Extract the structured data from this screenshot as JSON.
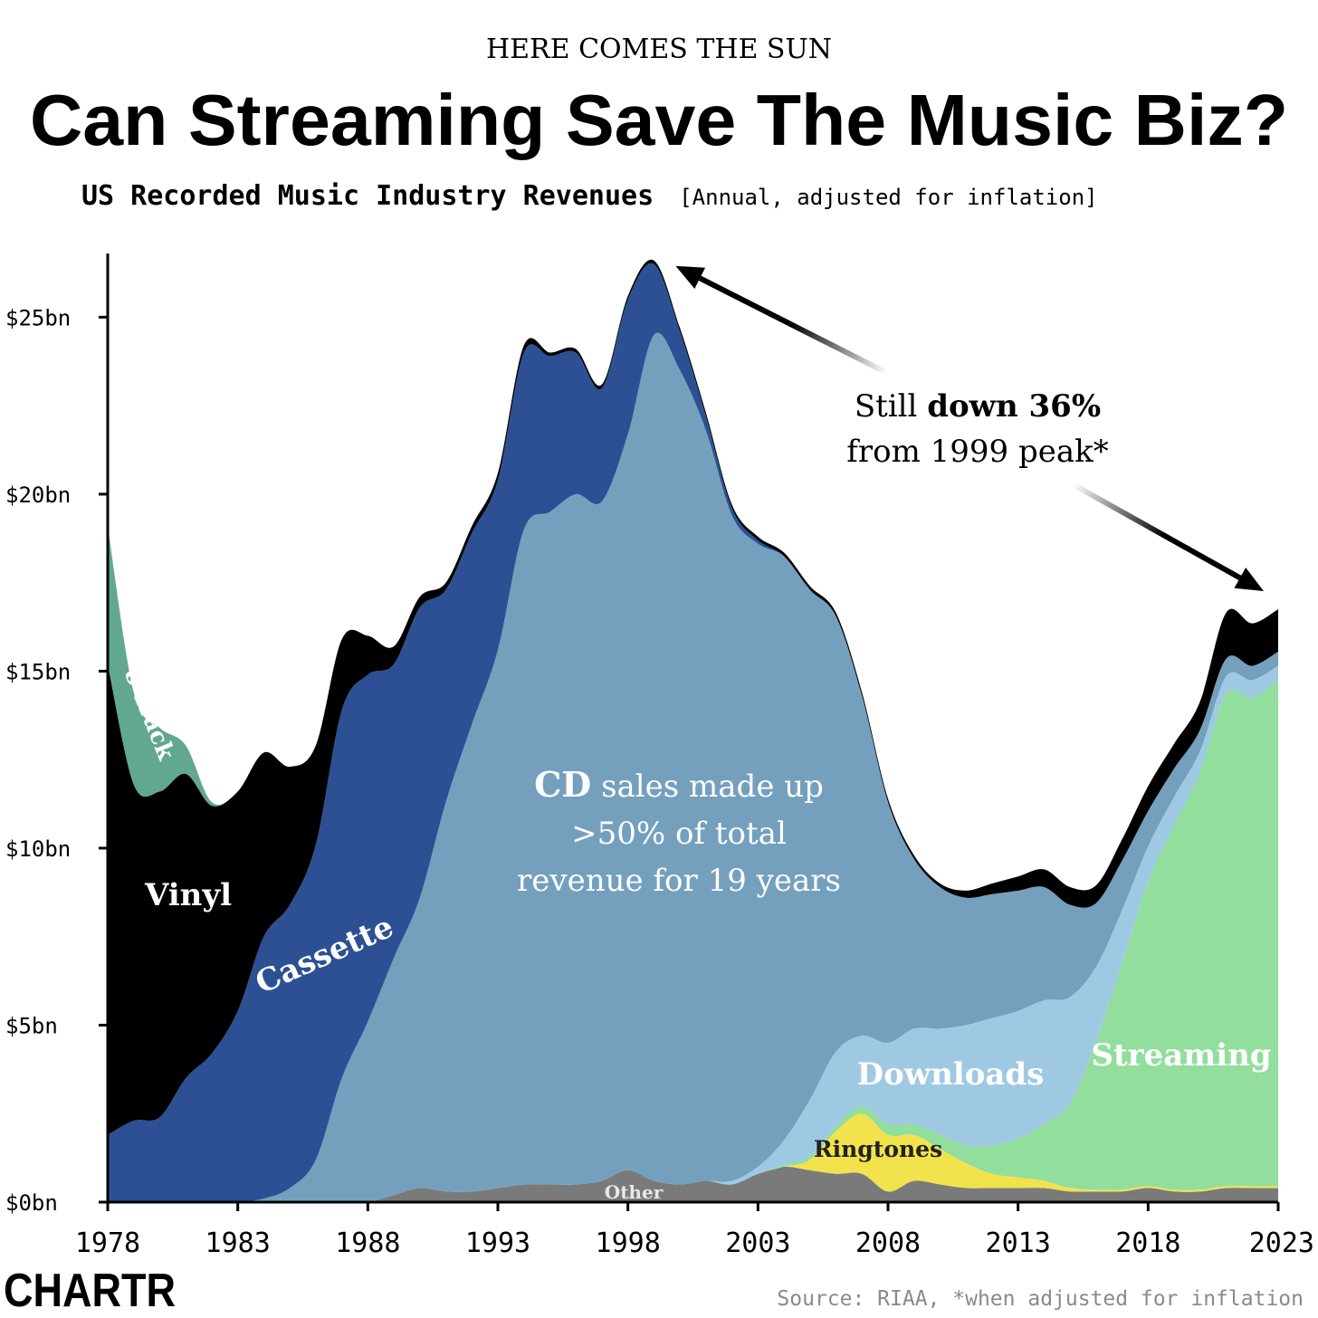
{
  "header": {
    "kicker": "HERE COMES THE SUN",
    "title": "Can Streaming Save The Music Biz?",
    "subtitle": "US Recorded Music Industry Revenues",
    "subtitle_note": "[Annual, adjusted for inflation]"
  },
  "annotation": {
    "line1_prefix": "Still ",
    "line1_bold": "down 36%",
    "line2": "from 1999 peak*",
    "from_year": 1999,
    "to_year": 2023
  },
  "cd_note": {
    "bold": "CD",
    "line1_rest": " sales made up",
    "line2": ">50% of total",
    "line3": "revenue for 19 years"
  },
  "footer": {
    "logo": "CHARTR",
    "source": "Source: RIAA, *when adjusted for inflation"
  },
  "colors": {
    "Other": "#7a7a7a",
    "Ringtones": "#f2e34c",
    "Streaming": "#92de9c",
    "Downloads": "#9fc9e3",
    "CD": "#74a0bd",
    "Cassette": "#2c5093",
    "Vinyl": "#000000",
    "8-Track": "#62a890",
    "axis": "#000000",
    "text": "#000000"
  },
  "chart_data": {
    "type": "area",
    "stacked": true,
    "x": [
      1978,
      1979,
      1980,
      1981,
      1982,
      1983,
      1984,
      1985,
      1986,
      1987,
      1988,
      1989,
      1990,
      1991,
      1992,
      1993,
      1994,
      1995,
      1996,
      1997,
      1998,
      1999,
      2000,
      2001,
      2002,
      2003,
      2004,
      2005,
      2006,
      2007,
      2008,
      2009,
      2010,
      2011,
      2012,
      2013,
      2014,
      2015,
      2016,
      2017,
      2018,
      2019,
      2020,
      2021,
      2022,
      2023
    ],
    "x_ticks": [
      1978,
      1983,
      1988,
      1993,
      1998,
      2003,
      2008,
      2013,
      2018,
      2023
    ],
    "y_ticks": [
      0,
      5,
      10,
      15,
      20,
      25
    ],
    "y_tick_labels": [
      "$0bn",
      "$5bn",
      "$10bn",
      "$15bn",
      "$20bn",
      "$25bn"
    ],
    "ylim": [
      0,
      26.8
    ],
    "xlabel": "",
    "ylabel": "",
    "series": [
      {
        "name": "Other",
        "label": "Other",
        "values": [
          0,
          0,
          0,
          0,
          0,
          0,
          0,
          0,
          0,
          0,
          0,
          0.2,
          0.4,
          0.3,
          0.3,
          0.4,
          0.5,
          0.5,
          0.5,
          0.6,
          0.9,
          0.6,
          0.5,
          0.6,
          0.5,
          0.8,
          1.0,
          0.9,
          0.8,
          0.8,
          0.3,
          0.6,
          0.5,
          0.4,
          0.4,
          0.4,
          0.4,
          0.3,
          0.3,
          0.3,
          0.4,
          0.3,
          0.3,
          0.4,
          0.4,
          0.4
        ]
      },
      {
        "name": "Ringtones",
        "label": "Ringtones",
        "values": [
          0,
          0,
          0,
          0,
          0,
          0,
          0,
          0,
          0,
          0,
          0,
          0,
          0,
          0,
          0,
          0,
          0,
          0,
          0,
          0,
          0,
          0,
          0,
          0,
          0,
          0,
          0,
          0.3,
          1.2,
          1.7,
          1.6,
          1.3,
          1.0,
          0.7,
          0.4,
          0.3,
          0.2,
          0.1,
          0.05,
          0.05,
          0.05,
          0.05,
          0.05,
          0.05,
          0.05,
          0.05
        ]
      },
      {
        "name": "Streaming",
        "label": "Streaming",
        "values": [
          0,
          0,
          0,
          0,
          0,
          0,
          0,
          0,
          0,
          0,
          0,
          0,
          0,
          0,
          0,
          0,
          0,
          0,
          0,
          0,
          0,
          0,
          0,
          0,
          0,
          0,
          0.05,
          0.1,
          0.15,
          0.2,
          0.3,
          0.3,
          0.4,
          0.5,
          0.8,
          1.1,
          1.6,
          2.4,
          4.2,
          6.4,
          8.6,
          10.3,
          11.8,
          13.9,
          13.8,
          14.3
        ]
      },
      {
        "name": "Downloads",
        "label": "Downloads",
        "values": [
          0,
          0,
          0,
          0,
          0,
          0,
          0,
          0,
          0,
          0,
          0,
          0,
          0,
          0,
          0,
          0,
          0,
          0,
          0,
          0,
          0,
          0,
          0,
          0,
          0.1,
          0.2,
          0.7,
          1.6,
          2.1,
          2.0,
          2.3,
          2.7,
          3.0,
          3.4,
          3.6,
          3.6,
          3.5,
          3.0,
          2.1,
          1.5,
          1.0,
          0.8,
          0.6,
          0.5,
          0.5,
          0.4
        ]
      },
      {
        "name": "CD",
        "label": "CD",
        "values": [
          0,
          0,
          0,
          0,
          0,
          0,
          0.1,
          0.4,
          1.2,
          3.5,
          5.1,
          6.7,
          8.2,
          11.0,
          13.2,
          15.2,
          18.5,
          19.0,
          19.5,
          19.2,
          20.8,
          23.9,
          23.0,
          21.2,
          18.8,
          17.6,
          16.5,
          14.4,
          12.3,
          9.6,
          6.8,
          4.8,
          4.0,
          3.6,
          3.5,
          3.4,
          3.2,
          2.6,
          1.8,
          1.4,
          1.0,
          0.8,
          0.6,
          0.5,
          0.4,
          0.4
        ]
      },
      {
        "name": "Cassette",
        "label": "Cassette",
        "values": [
          1.9,
          2.3,
          2.4,
          3.5,
          4.2,
          5.4,
          7.4,
          8.0,
          8.9,
          10.4,
          9.8,
          8.3,
          8.2,
          6.0,
          5.4,
          4.8,
          5.0,
          4.4,
          4.0,
          3.2,
          3.8,
          2.0,
          1.1,
          0.4,
          0.2,
          0.1,
          0,
          0,
          0,
          0,
          0,
          0,
          0,
          0,
          0,
          0,
          0,
          0,
          0,
          0,
          0,
          0,
          0,
          0,
          0,
          0
        ]
      },
      {
        "name": "Vinyl",
        "label": "Vinyl",
        "values": [
          13.3,
          9.5,
          9.2,
          8.6,
          7.0,
          6.2,
          5.2,
          3.9,
          2.8,
          2.0,
          1.1,
          0.5,
          0.3,
          0.2,
          0.2,
          0.2,
          0.2,
          0.1,
          0.1,
          0.1,
          0.1,
          0.1,
          0.1,
          0.1,
          0.1,
          0.1,
          0.1,
          0.1,
          0.1,
          0.1,
          0.1,
          0.1,
          0.1,
          0.2,
          0.3,
          0.4,
          0.5,
          0.5,
          0.5,
          0.6,
          0.7,
          0.7,
          0.8,
          1.3,
          1.2,
          1.2
        ]
      },
      {
        "name": "8-Track",
        "label": "8-Track",
        "values": [
          3.9,
          2.6,
          1.8,
          0.8,
          0.1,
          0,
          0,
          0,
          0,
          0,
          0,
          0,
          0,
          0,
          0,
          0,
          0,
          0,
          0,
          0,
          0,
          0,
          0,
          0,
          0,
          0,
          0,
          0,
          0,
          0,
          0,
          0,
          0,
          0,
          0,
          0,
          0,
          0,
          0,
          0,
          0,
          0,
          0,
          0,
          0,
          0
        ]
      }
    ]
  }
}
